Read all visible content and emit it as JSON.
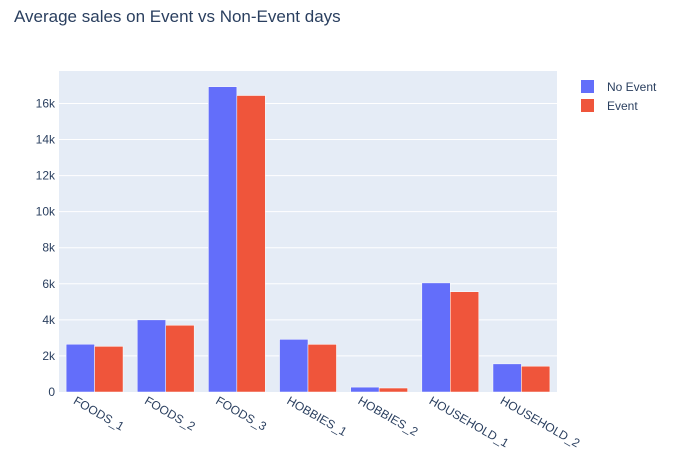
{
  "colors": {
    "plot_bg": "#e5ecf6",
    "grid": "#ffffff",
    "text": "#2a3f5f"
  },
  "chart_data": {
    "type": "bar",
    "title": "Average sales on Event vs Non-Event days",
    "xlabel": "",
    "ylabel": "",
    "categories": [
      "FOODS_1",
      "FOODS_2",
      "FOODS_3",
      "HOBBIES_1",
      "HOBBIES_2",
      "HOUSEHOLD_1",
      "HOUSEHOLD_2"
    ],
    "series": [
      {
        "name": "No Event",
        "color": "#636efa",
        "values": [
          2650,
          4000,
          16930,
          2920,
          270,
          6050,
          1560
        ]
      },
      {
        "name": "Event",
        "color": "#ef553b",
        "values": [
          2530,
          3700,
          16440,
          2640,
          220,
          5560,
          1430
        ]
      }
    ],
    "ylim": [
      0,
      17800
    ],
    "yticks": [
      0,
      2000,
      4000,
      6000,
      8000,
      10000,
      12000,
      14000,
      16000
    ],
    "ytick_labels": [
      "0",
      "2k",
      "4k",
      "6k",
      "8k",
      "10k",
      "12k",
      "14k",
      "16k"
    ],
    "grid": true,
    "legend_position": "top-right"
  }
}
